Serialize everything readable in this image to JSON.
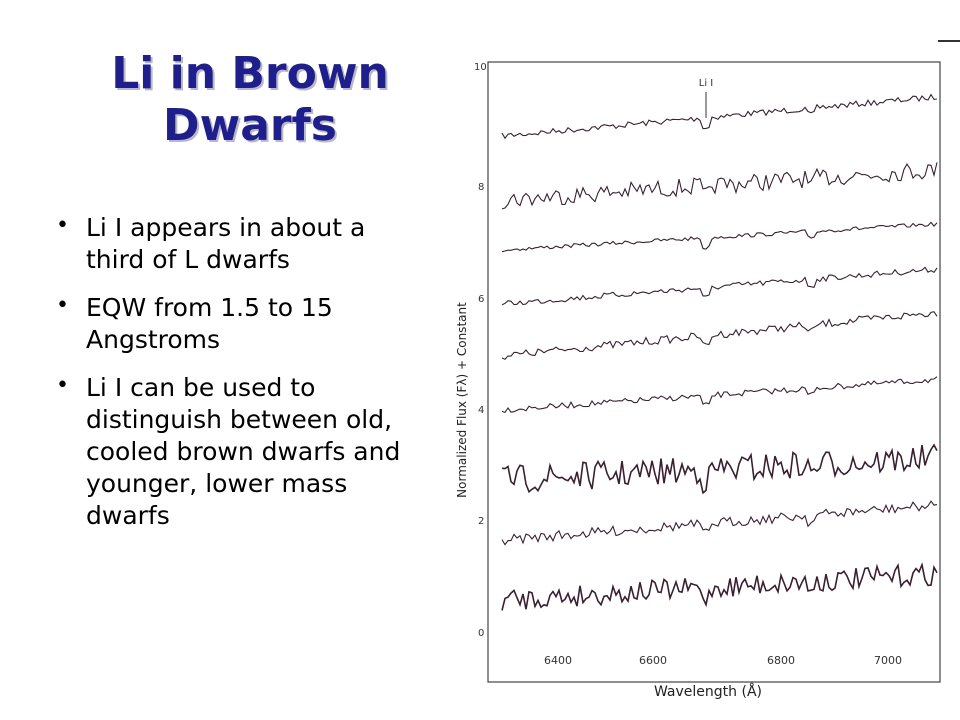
{
  "title": {
    "line1": "Li in Brown",
    "line2": "Dwarfs"
  },
  "bullets": [
    {
      "text": "Li I appears in about a third of L dwarfs"
    },
    {
      "text": "EQW from 1.5 to 15 Angstroms"
    },
    {
      "text": "Li I can be used to distinguish between old, cooled brown dwarfs and younger, lower mass dwarfs"
    }
  ],
  "figure": {
    "line_label": "Li I",
    "xlabel": "Wavelength (Å)",
    "ylabel": "Normalized Flux (Fλ) + Constant",
    "x_ticks": [
      "6400",
      "6600",
      "6800",
      "7000"
    ],
    "y_ticks": [
      "10",
      "8",
      "6",
      "4",
      "2",
      "0"
    ],
    "trace_color": "#3a2030"
  }
}
